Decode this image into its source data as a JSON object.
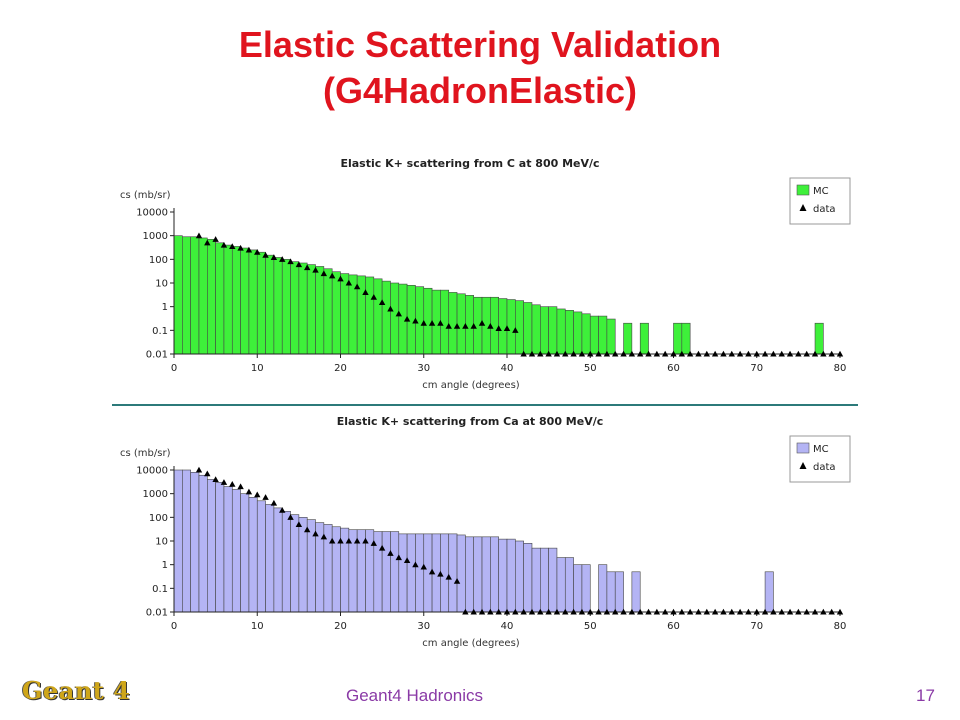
{
  "slide": {
    "title_line1": "Elastic Scattering Validation",
    "title_line2": "(G4HadronElastic)",
    "footer": "Geant4 Hadronics",
    "page_number": "17",
    "logo": "Geant 4",
    "title_color": "#e0141e",
    "footer_color": "#8a3aa6"
  },
  "chart_data": [
    {
      "type": "bar",
      "title": "Elastic K+ scattering from C at 800 MeV/c",
      "xlabel": "cm angle (degrees)",
      "ylabel": "cs (mb/sr)",
      "xlim": [
        0,
        80
      ],
      "ylim": [
        0.01,
        10000
      ],
      "yscale": "log",
      "xticks": [
        "0",
        "10",
        "20",
        "30",
        "40",
        "50",
        "60",
        "70",
        "80"
      ],
      "yticks": [
        "10000",
        "1000",
        "100",
        "10",
        "1",
        "0.1",
        "0.01"
      ],
      "legend_position": "top-right",
      "grid": false,
      "series": [
        {
          "name": "MC",
          "kind": "histogram",
          "color": "#3ef03a",
          "bin_width": 1,
          "x_start": 0,
          "values": [
            1000,
            900,
            900,
            800,
            700,
            500,
            400,
            350,
            300,
            250,
            200,
            150,
            120,
            100,
            80,
            70,
            60,
            50,
            40,
            30,
            25,
            22,
            20,
            18,
            15,
            12,
            10,
            9,
            8,
            7,
            6,
            5,
            5,
            4,
            3.5,
            3,
            2.5,
            2.5,
            2.5,
            2.2,
            2,
            1.8,
            1.5,
            1.2,
            1,
            1,
            0.8,
            0.7,
            0.6,
            0.5,
            0.4,
            0.4,
            0.3,
            0.01,
            0.2,
            0.01,
            0.2,
            0.01,
            0.01,
            0.01,
            0.2,
            0.2,
            0.01,
            0.01,
            0.01,
            0.01,
            0.01,
            0.01,
            0.01,
            0.01,
            0.01,
            0.01,
            0.01,
            0.01,
            0.01,
            0.01,
            0.01,
            0.2,
            0.01,
            0.01
          ]
        },
        {
          "name": "data",
          "kind": "points",
          "color": "#000000",
          "x": [
            3,
            4,
            5,
            6,
            7,
            8,
            9,
            10,
            11,
            12,
            13,
            14,
            15,
            16,
            17,
            18,
            19,
            20,
            21,
            22,
            23,
            24,
            25,
            26,
            27,
            28,
            29,
            30,
            31,
            32,
            33,
            34,
            35,
            36,
            37,
            38,
            39,
            40,
            41,
            42,
            43,
            44,
            45,
            46,
            47,
            48,
            49,
            50,
            51,
            52,
            53,
            54,
            55,
            56,
            57,
            58,
            59,
            60,
            61,
            62,
            63,
            64,
            65,
            66,
            67,
            68,
            69,
            70,
            71,
            72,
            73,
            74,
            75,
            76,
            77,
            78,
            79,
            80
          ],
          "y": [
            1000,
            500,
            700,
            400,
            350,
            300,
            250,
            200,
            150,
            120,
            100,
            80,
            60,
            45,
            35,
            25,
            20,
            15,
            10,
            7,
            4,
            2.5,
            1.5,
            0.8,
            0.5,
            0.3,
            0.25,
            0.2,
            0.2,
            0.2,
            0.15,
            0.15,
            0.15,
            0.15,
            0.2,
            0.15,
            0.12,
            0.12,
            0.1,
            0.01,
            0.01,
            0.01,
            0.01,
            0.01,
            0.01,
            0.01,
            0.01,
            0.01,
            0.01,
            0.01,
            0.01,
            0.01,
            0.01,
            0.01,
            0.01,
            0.01,
            0.01,
            0.01,
            0.01,
            0.01,
            0.01,
            0.01,
            0.01,
            0.01,
            0.01,
            0.01,
            0.01,
            0.01,
            0.01,
            0.01,
            0.01,
            0.01,
            0.01,
            0.01,
            0.01,
            0.01,
            0.01,
            0.01
          ]
        }
      ]
    },
    {
      "type": "bar",
      "title": "Elastic K+ scattering from Ca at 800 MeV/c",
      "xlabel": "cm angle (degrees)",
      "ylabel": "cs (mb/sr)",
      "xlim": [
        0,
        80
      ],
      "ylim": [
        0.01,
        10000
      ],
      "yscale": "log",
      "xticks": [
        "0",
        "10",
        "20",
        "30",
        "40",
        "50",
        "60",
        "70",
        "80"
      ],
      "yticks": [
        "10000",
        "1000",
        "100",
        "10",
        "1",
        "0.1",
        "0.01"
      ],
      "legend_position": "top-right",
      "grid": false,
      "series": [
        {
          "name": "MC",
          "kind": "histogram",
          "color": "#b4b4f4",
          "bin_width": 1,
          "x_start": 0,
          "values": [
            10000,
            10000,
            8000,
            6000,
            4000,
            3000,
            2000,
            1500,
            1000,
            700,
            500,
            350,
            250,
            180,
            130,
            100,
            80,
            60,
            50,
            40,
            35,
            30,
            30,
            30,
            25,
            25,
            25,
            20,
            20,
            20,
            20,
            20,
            20,
            20,
            18,
            15,
            15,
            15,
            15,
            12,
            12,
            10,
            8,
            5,
            5,
            5,
            2,
            2,
            1,
            1,
            0.01,
            1,
            0.5,
            0.5,
            0.01,
            0.5,
            0.01,
            0.01,
            0.01,
            0.01,
            0.01,
            0.01,
            0.01,
            0.01,
            0.01,
            0.01,
            0.01,
            0.01,
            0.01,
            0.01,
            0.01,
            0.5,
            0.01,
            0.01,
            0.01,
            0.01,
            0.01,
            0.01,
            0.01,
            0.01
          ]
        },
        {
          "name": "data",
          "kind": "points",
          "color": "#000000",
          "x": [
            3,
            4,
            5,
            6,
            7,
            8,
            9,
            10,
            11,
            12,
            13,
            14,
            15,
            16,
            17,
            18,
            19,
            20,
            21,
            22,
            23,
            24,
            25,
            26,
            27,
            28,
            29,
            30,
            31,
            32,
            33,
            34,
            35,
            36,
            37,
            38,
            39,
            40,
            41,
            42,
            43,
            44,
            45,
            46,
            47,
            48,
            49,
            50,
            51,
            52,
            53,
            54,
            55,
            56,
            57,
            58,
            59,
            60,
            61,
            62,
            63,
            64,
            65,
            66,
            67,
            68,
            69,
            70,
            71,
            72,
            73,
            74,
            75,
            76,
            77,
            78,
            79,
            80
          ],
          "y": [
            10000,
            7000,
            4000,
            3000,
            2500,
            2000,
            1200,
            900,
            700,
            400,
            200,
            100,
            50,
            30,
            20,
            15,
            10,
            10,
            10,
            10,
            10,
            8,
            5,
            3,
            2,
            1.5,
            1,
            0.8,
            0.5,
            0.4,
            0.3,
            0.2,
            0.01,
            0.01,
            0.01,
            0.01,
            0.01,
            0.01,
            0.01,
            0.01,
            0.01,
            0.01,
            0.01,
            0.01,
            0.01,
            0.01,
            0.01,
            0.01,
            0.01,
            0.01,
            0.01,
            0.01,
            0.01,
            0.01,
            0.01,
            0.01,
            0.01,
            0.01,
            0.01,
            0.01,
            0.01,
            0.01,
            0.01,
            0.01,
            0.01,
            0.01,
            0.01,
            0.01,
            0.01,
            0.01,
            0.01,
            0.01,
            0.01,
            0.01,
            0.01,
            0.01,
            0.01,
            0.01
          ]
        }
      ]
    }
  ]
}
